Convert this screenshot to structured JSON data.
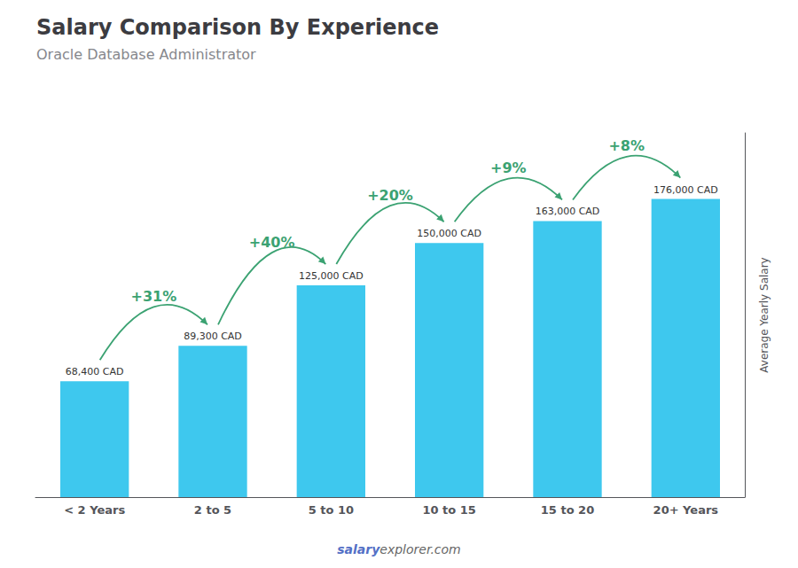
{
  "chart_data": {
    "type": "bar",
    "title": "Salary Comparison By Experience",
    "subtitle": "Oracle Database Administrator",
    "categories": [
      "< 2 Years",
      "2 to 5",
      "5 to 10",
      "10 to 15",
      "15 to 20",
      "20+ Years"
    ],
    "values": [
      68400,
      89300,
      125000,
      150000,
      163000,
      176000
    ],
    "value_labels": [
      "68,400 CAD",
      "89,300 CAD",
      "125,000 CAD",
      "150,000 CAD",
      "163,000 CAD",
      "176,000 CAD"
    ],
    "data_labels": true,
    "color": "#3ec8ee",
    "ylabel": "Average Yearly Salary",
    "ylim": [
      0,
      215000
    ],
    "tick_labels": "x",
    "grid": false,
    "annotations": [
      "+31%",
      "+40%",
      "+20%",
      "+9%",
      "+8%"
    ],
    "watermark": [
      "salary",
      "explorer.com"
    ]
  }
}
